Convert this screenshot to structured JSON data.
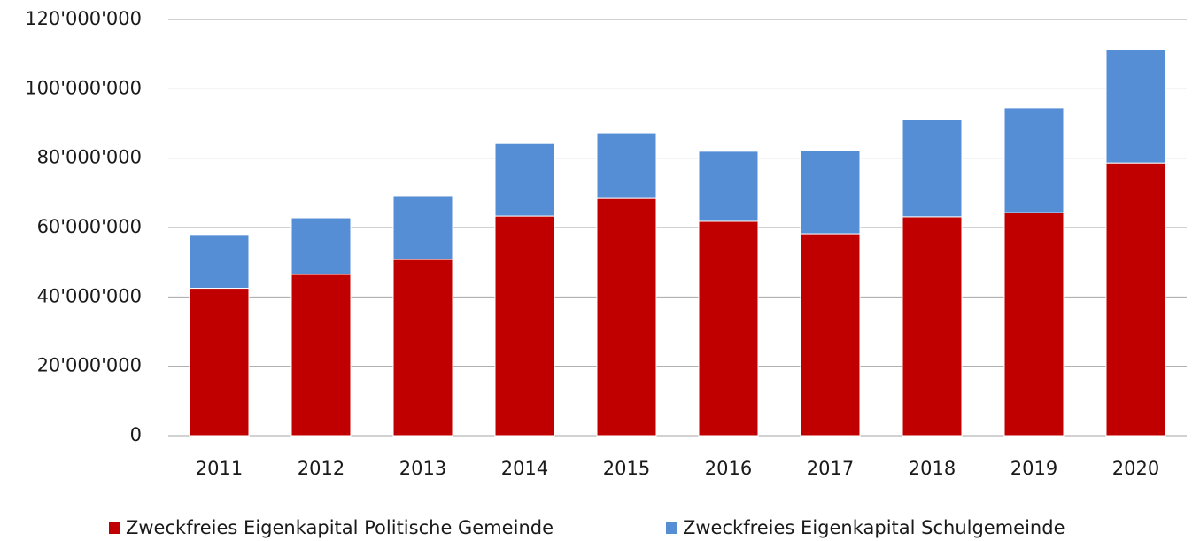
{
  "chart_data": {
    "type": "stacked_bar",
    "categories": [
      "2011",
      "2012",
      "2013",
      "2014",
      "2015",
      "2016",
      "2017",
      "2018",
      "2019",
      "2020"
    ],
    "series": [
      {
        "name": "Zweckfreies Eigenkapital Politische Gemeinde",
        "color": "#c00000",
        "values": [
          42500000,
          46500000,
          50800000,
          63300000,
          68400000,
          61800000,
          58200000,
          63100000,
          64300000,
          78600000
        ]
      },
      {
        "name": "Zweckfreies Eigenkapital Schulgemeinde",
        "color": "#558ed5",
        "values": [
          15500000,
          16300000,
          18400000,
          20900000,
          18900000,
          20200000,
          24000000,
          28000000,
          30200000,
          32700000
        ]
      }
    ],
    "ylim": [
      0,
      120000000
    ],
    "yticks": [
      0,
      {
        "value": 20000000,
        "label": "20'000'000"
      },
      {
        "value": 40000000,
        "label": "40'000'000"
      },
      {
        "value": 60000000,
        "label": "60'000'000"
      },
      {
        "value": 80000000,
        "label": "80'000'000"
      },
      {
        "value": 100000000,
        "label": "100'000'000"
      },
      {
        "value": 120000000,
        "label": "120'000'000"
      }
    ],
    "grid": true,
    "legend": "bottom"
  }
}
